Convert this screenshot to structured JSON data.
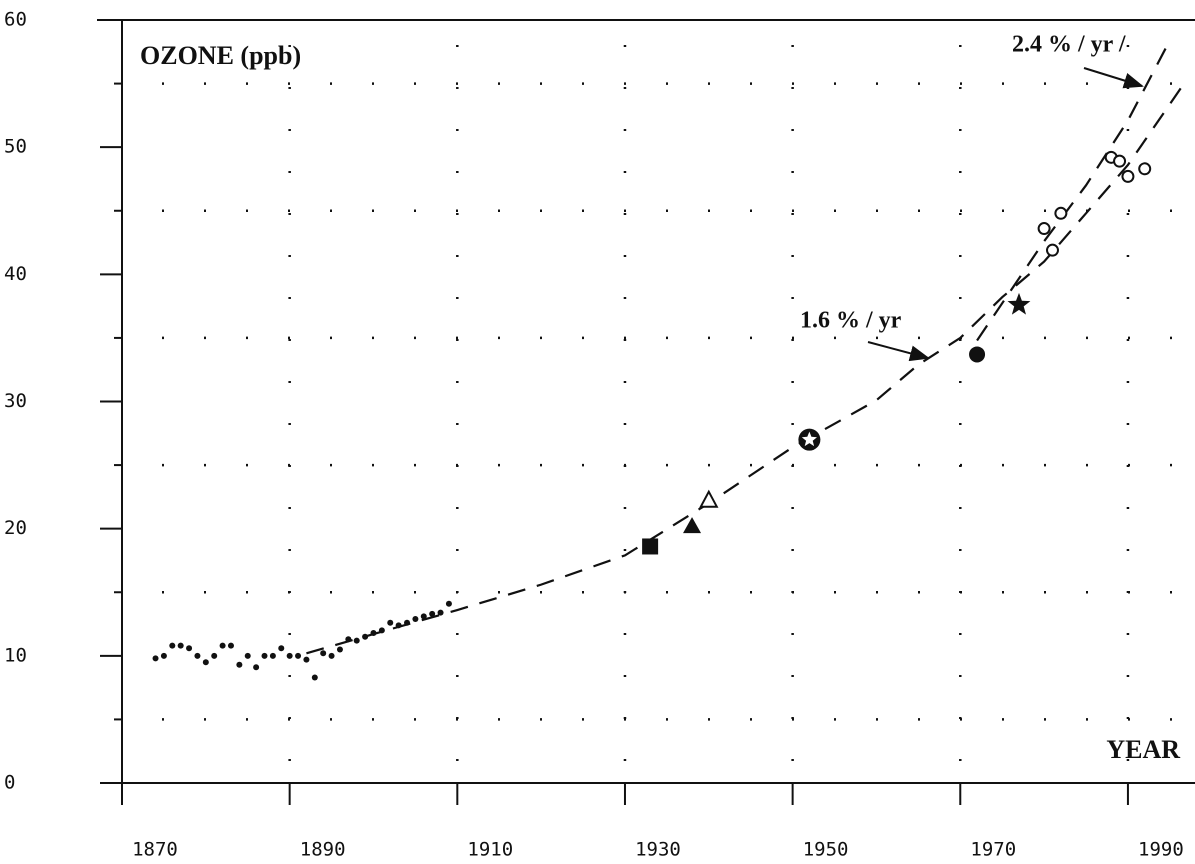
{
  "chart_data": {
    "type": "scatter",
    "title": "OZONE (ppb)",
    "x_label": "YEAR",
    "annotations": [
      "1.6 % / yr",
      "2.4 % / yr /"
    ],
    "xlim": [
      1870,
      1998
    ],
    "ylim": [
      0,
      60
    ],
    "xticks": [
      1870,
      1890,
      1910,
      1930,
      1950,
      1970,
      1990
    ],
    "yticks": [
      0,
      10,
      20,
      30,
      40,
      50,
      60
    ],
    "yminorticks": [
      5,
      15,
      25,
      35,
      45,
      55
    ],
    "xgrid": [
      1890,
      1910,
      1930,
      1950,
      1970,
      1990
    ],
    "grid": "dotted",
    "color": "#111111",
    "series": [
      {
        "marker": "dot",
        "x": [
          1874,
          1875,
          1876,
          1877,
          1878,
          1879,
          1880,
          1881,
          1882,
          1883,
          1884,
          1885,
          1886,
          1887,
          1888,
          1889,
          1890,
          1891,
          1892,
          1893,
          1894,
          1895,
          1896,
          1897,
          1898,
          1899,
          1900,
          1901,
          1902,
          1903,
          1904,
          1905,
          1906,
          1907,
          1908,
          1909
        ],
        "values": [
          9.8,
          10.0,
          10.8,
          10.8,
          10.6,
          10.0,
          9.5,
          10.0,
          10.8,
          10.8,
          9.3,
          10.0,
          9.1,
          10.0,
          10.0,
          10.6,
          10.0,
          10.0,
          9.7,
          8.3,
          10.2,
          10.0,
          10.5,
          11.3,
          11.2,
          11.5,
          11.8,
          12.0,
          12.6,
          12.4,
          12.6,
          12.9,
          13.1,
          13.3,
          13.4,
          14.1
        ]
      },
      {
        "marker": "square",
        "x": [
          1933
        ],
        "values": [
          18.6
        ]
      },
      {
        "marker": "triangle",
        "x": [
          1938
        ],
        "values": [
          20.2
        ]
      },
      {
        "marker": "open-triangle",
        "x": [
          1940
        ],
        "values": [
          22.2
        ]
      },
      {
        "marker": "circled-star",
        "x": [
          1952
        ],
        "values": [
          27.0
        ]
      },
      {
        "marker": "circle",
        "x": [
          1972
        ],
        "values": [
          33.7
        ]
      },
      {
        "marker": "star",
        "x": [
          1977
        ],
        "values": [
          37.6
        ]
      },
      {
        "marker": "open-circle",
        "x": [
          1980,
          1982,
          1981,
          1988,
          1989,
          1990,
          1992
        ],
        "values": [
          43.6,
          44.8,
          41.9,
          49.2,
          48.9,
          47.7,
          48.3
        ]
      }
    ],
    "lines": [
      {
        "style": "dashed",
        "x": [
          1892,
          1910,
          1920,
          1930,
          1940,
          1950,
          1960,
          1965,
          1970,
          1975,
          1980,
          1985,
          1990,
          1997
        ],
        "values": [
          10.2,
          13.6,
          15.6,
          17.9,
          22.0,
          26.4,
          30.1,
          32.9,
          35.0,
          38.2,
          41.0,
          44.8,
          48.6,
          55.3
        ]
      },
      {
        "style": "dashed",
        "x": [
          1972,
          1980,
          1985,
          1990,
          1995
        ],
        "values": [
          34.8,
          42.6,
          47.0,
          52.1,
          58.4
        ]
      }
    ]
  }
}
